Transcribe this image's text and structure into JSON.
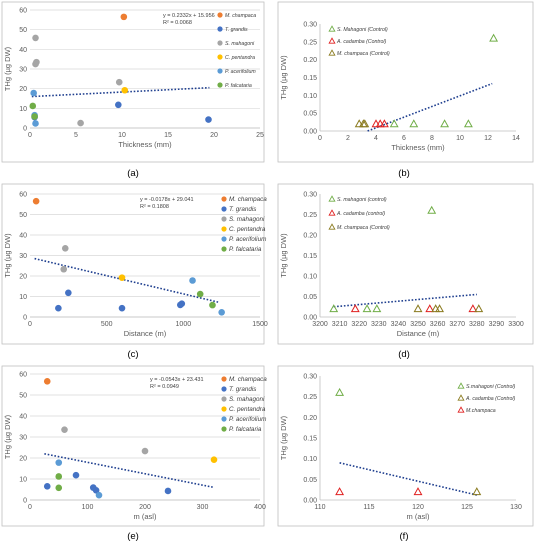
{
  "colors": {
    "M. champaca": "#ED7D31",
    "T. grandis": "#4472C4",
    "S. mahagoni": "#A5A5A5",
    "C. pentandra": "#FFC000",
    "P. acerifolium": "#5B9BD5",
    "P. falcataria": "#70AD47",
    "trend": "#1F3F8F",
    "grid": "#D9D9D9",
    "axis_text": "#595959"
  },
  "chart_data": [
    {
      "panel_label": "(a)",
      "type": "scatter",
      "xlabel": "Thickness (mm)",
      "ylabel": "THg (µg DW)",
      "xlim": [
        0,
        25
      ],
      "ylim": [
        0,
        60
      ],
      "xticks": [
        0,
        5,
        10,
        15,
        20,
        25
      ],
      "yticks": [
        0,
        10,
        20,
        30,
        40,
        50,
        60
      ],
      "grid": true,
      "legend_placement": "top-right",
      "equation": "y = 0.2332x + 15.956",
      "r2": "R² = 0.0068",
      "trendline": {
        "x": [
          0.2,
          19.5
        ],
        "y": [
          16.0,
          20.5
        ]
      },
      "series": [
        {
          "name": "M. champaca",
          "color_key": "M. champaca",
          "marker": "circle",
          "x": [
            10.2
          ],
          "y": [
            56.5
          ]
        },
        {
          "name": "T. grandis",
          "color_key": "T. grandis",
          "marker": "circle",
          "x": [
            0.5,
            9.6,
            19.4
          ],
          "y": [
            5.5,
            11.8,
            4.3
          ]
        },
        {
          "name": "S. mahagoni",
          "color_key": "S. mahagoni",
          "marker": "circle",
          "x": [
            0.6,
            0.7,
            0.6,
            9.7,
            5.5
          ],
          "y": [
            45.8,
            33.5,
            32.5,
            23.3,
            2.5
          ]
        },
        {
          "name": "C. pentandra",
          "color_key": "C. pentandra",
          "marker": "circle",
          "x": [
            10.3
          ],
          "y": [
            19.2
          ]
        },
        {
          "name": "P. acerifolium",
          "color_key": "P. acerifolium",
          "marker": "circle",
          "x": [
            0.4,
            0.5,
            0.6
          ],
          "y": [
            17.8,
            6.5,
            2.3
          ]
        },
        {
          "name": "P. falcataria",
          "color_key": "P. falcataria",
          "marker": "circle",
          "x": [
            0.3,
            0.5
          ],
          "y": [
            11.2,
            5.8
          ]
        }
      ]
    },
    {
      "panel_label": "(b)",
      "type": "scatter",
      "xlabel": "Thickness (mm)",
      "ylabel": "THg (µg DW)",
      "xlim": [
        0,
        14
      ],
      "ylim": [
        0,
        0.3
      ],
      "xticks": [
        0,
        2,
        4,
        6,
        8,
        10,
        12,
        14
      ],
      "yticks": [
        "0.00",
        "0.05",
        "0.10",
        "0.15",
        "0.20",
        "0.25",
        "0.30"
      ],
      "grid": false,
      "legend_placement": "top-left",
      "trendline": {
        "x": [
          3.4,
          12.3
        ],
        "y": [
          0.0,
          0.133
        ]
      },
      "series": [
        {
          "name": "S. Mahagoni (Control)",
          "color_key": "P. falcataria",
          "marker": "triangle",
          "x": [
            5.3,
            6.7,
            8.9,
            10.6,
            12.4
          ],
          "y": [
            0.02,
            0.02,
            0.02,
            0.02,
            0.26
          ]
        },
        {
          "name": "A. cadamba (Control)",
          "color_key": "red",
          "marker": "triangle",
          "x": [
            4.0,
            4.3,
            4.6
          ],
          "y": [
            0.02,
            0.02,
            0.02
          ]
        },
        {
          "name": "M. champaca (Control)",
          "color_key": "olive",
          "marker": "triangle",
          "x": [
            2.8,
            3.1,
            3.2
          ],
          "y": [
            0.02,
            0.02,
            0.02
          ]
        }
      ]
    },
    {
      "panel_label": "(c)",
      "type": "scatter",
      "xlabel": "Distance (m)",
      "ylabel": "THg (µg DW)",
      "xlim": [
        0,
        1500
      ],
      "ylim": [
        0,
        60
      ],
      "xticks": [
        0,
        500,
        1000,
        1500
      ],
      "yticks": [
        0,
        10,
        20,
        30,
        40,
        50,
        60
      ],
      "grid": true,
      "legend_placement": "top-right",
      "equation": "y = -0.0178x + 29.041",
      "r2": "R² = 0.1808",
      "trendline": {
        "x": [
          30,
          1230
        ],
        "y": [
          28.5,
          7.2
        ]
      },
      "series": [
        {
          "name": "M. champaca",
          "color_key": "M. champaca",
          "marker": "circle",
          "x": [
            40
          ],
          "y": [
            56.5
          ]
        },
        {
          "name": "T. grandis",
          "color_key": "T. grandis",
          "marker": "circle",
          "x": [
            185,
            250,
            600,
            980,
            990
          ],
          "y": [
            4.3,
            11.8,
            4.3,
            5.9,
            6.5
          ]
        },
        {
          "name": "S. mahagoni",
          "color_key": "S. mahagoni",
          "marker": "circle",
          "x": [
            230,
            220
          ],
          "y": [
            33.5,
            23.3
          ]
        },
        {
          "name": "C. pentandra",
          "color_key": "C. pentandra",
          "marker": "circle",
          "x": [
            600
          ],
          "y": [
            19.2
          ]
        },
        {
          "name": "P. acerifolium",
          "color_key": "P. acerifolium",
          "marker": "circle",
          "x": [
            1060,
            1250
          ],
          "y": [
            17.8,
            2.3
          ]
        },
        {
          "name": "P. falcataria",
          "color_key": "P. falcataria",
          "marker": "circle",
          "x": [
            1110,
            1190
          ],
          "y": [
            11.2,
            5.8
          ]
        }
      ]
    },
    {
      "panel_label": "(d)",
      "type": "scatter",
      "xlabel": "Distance (m)",
      "ylabel": "THg (µg DW)",
      "xlim": [
        3200,
        3300
      ],
      "ylim": [
        0,
        0.3
      ],
      "xticks": [
        3200,
        3210,
        3220,
        3230,
        3240,
        3250,
        3260,
        3270,
        3280,
        3290,
        3300
      ],
      "yticks": [
        "0.00",
        "0.05",
        "0.10",
        "0.15",
        "0.20",
        "0.25",
        "0.30"
      ],
      "grid": false,
      "legend_placement": "top-left",
      "trendline": {
        "x": [
          3207,
          3280
        ],
        "y": [
          0.025,
          0.055
        ]
      },
      "series": [
        {
          "name": "S. mahagoni (control)",
          "color_key": "P. falcataria",
          "marker": "triangle",
          "x": [
            3207,
            3224,
            3229,
            3257
          ],
          "y": [
            0.02,
            0.02,
            0.02,
            0.26
          ]
        },
        {
          "name": "A. cadamba (control)",
          "color_key": "red",
          "marker": "triangle",
          "x": [
            3218,
            3256,
            3278
          ],
          "y": [
            0.02,
            0.02,
            0.02
          ]
        },
        {
          "name": "M. champaca (Control)",
          "color_key": "olive",
          "marker": "triangle",
          "x": [
            3250,
            3259,
            3261,
            3281
          ],
          "y": [
            0.02,
            0.02,
            0.02,
            0.02
          ]
        }
      ]
    },
    {
      "panel_label": "(e)",
      "type": "scatter",
      "xlabel": "m (asl)",
      "ylabel": "THg (µg DW)",
      "xlim": [
        0,
        400
      ],
      "ylim": [
        0,
        60
      ],
      "xticks": [
        0,
        100,
        200,
        300,
        400
      ],
      "yticks": [
        0,
        10,
        20,
        30,
        40,
        50,
        60
      ],
      "grid": true,
      "legend_placement": "top-right",
      "equation": "y = -0.0543x + 23.431",
      "r2": "R² = 0.0949",
      "trendline": {
        "x": [
          25,
          320
        ],
        "y": [
          22.0,
          6.0
        ]
      },
      "series": [
        {
          "name": "M. champaca",
          "color_key": "M. champaca",
          "marker": "circle",
          "x": [
            30
          ],
          "y": [
            56.5
          ]
        },
        {
          "name": "T. grandis",
          "color_key": "T. grandis",
          "marker": "circle",
          "x": [
            30,
            80,
            110,
            115,
            240
          ],
          "y": [
            6.5,
            11.8,
            5.9,
            4.6,
            4.3
          ]
        },
        {
          "name": "S. mahagoni",
          "color_key": "S. mahagoni",
          "marker": "circle",
          "x": [
            60,
            200
          ],
          "y": [
            33.5,
            23.3
          ]
        },
        {
          "name": "C. pentandra",
          "color_key": "C. pentandra",
          "marker": "circle",
          "x": [
            320
          ],
          "y": [
            19.2
          ]
        },
        {
          "name": "P. acerifolium",
          "color_key": "P. acerifolium",
          "marker": "circle",
          "x": [
            50,
            120
          ],
          "y": [
            17.8,
            2.3
          ]
        },
        {
          "name": "P. falcataria",
          "color_key": "P. falcataria",
          "marker": "circle",
          "x": [
            50,
            50
          ],
          "y": [
            11.2,
            5.8
          ]
        }
      ]
    },
    {
      "panel_label": "(f)",
      "type": "scatter",
      "xlabel": "m (asl)",
      "ylabel": "THg (µg DW)",
      "xlim": [
        110,
        130
      ],
      "ylim": [
        0,
        0.3
      ],
      "xticks": [
        110,
        115,
        120,
        125,
        130
      ],
      "yticks": [
        "0.00",
        "0.05",
        "0.10",
        "0.15",
        "0.20",
        "0.25",
        "0.30"
      ],
      "grid": false,
      "legend_placement": "top-right",
      "trendline": {
        "x": [
          112,
          126
        ],
        "y": [
          0.09,
          0.012
        ]
      },
      "series": [
        {
          "name": "S.mahagoni (Control)",
          "color_key": "P. falcataria",
          "marker": "triangle",
          "x": [
            112
          ],
          "y": [
            0.26
          ]
        },
        {
          "name": "A. cadamba (Control)",
          "color_key": "olive",
          "marker": "triangle",
          "x": [
            126
          ],
          "y": [
            0.02
          ]
        },
        {
          "name": "M.champaca",
          "color_key": "red",
          "marker": "triangle",
          "x": [
            112,
            120
          ],
          "y": [
            0.02,
            0.02
          ]
        }
      ]
    }
  ]
}
